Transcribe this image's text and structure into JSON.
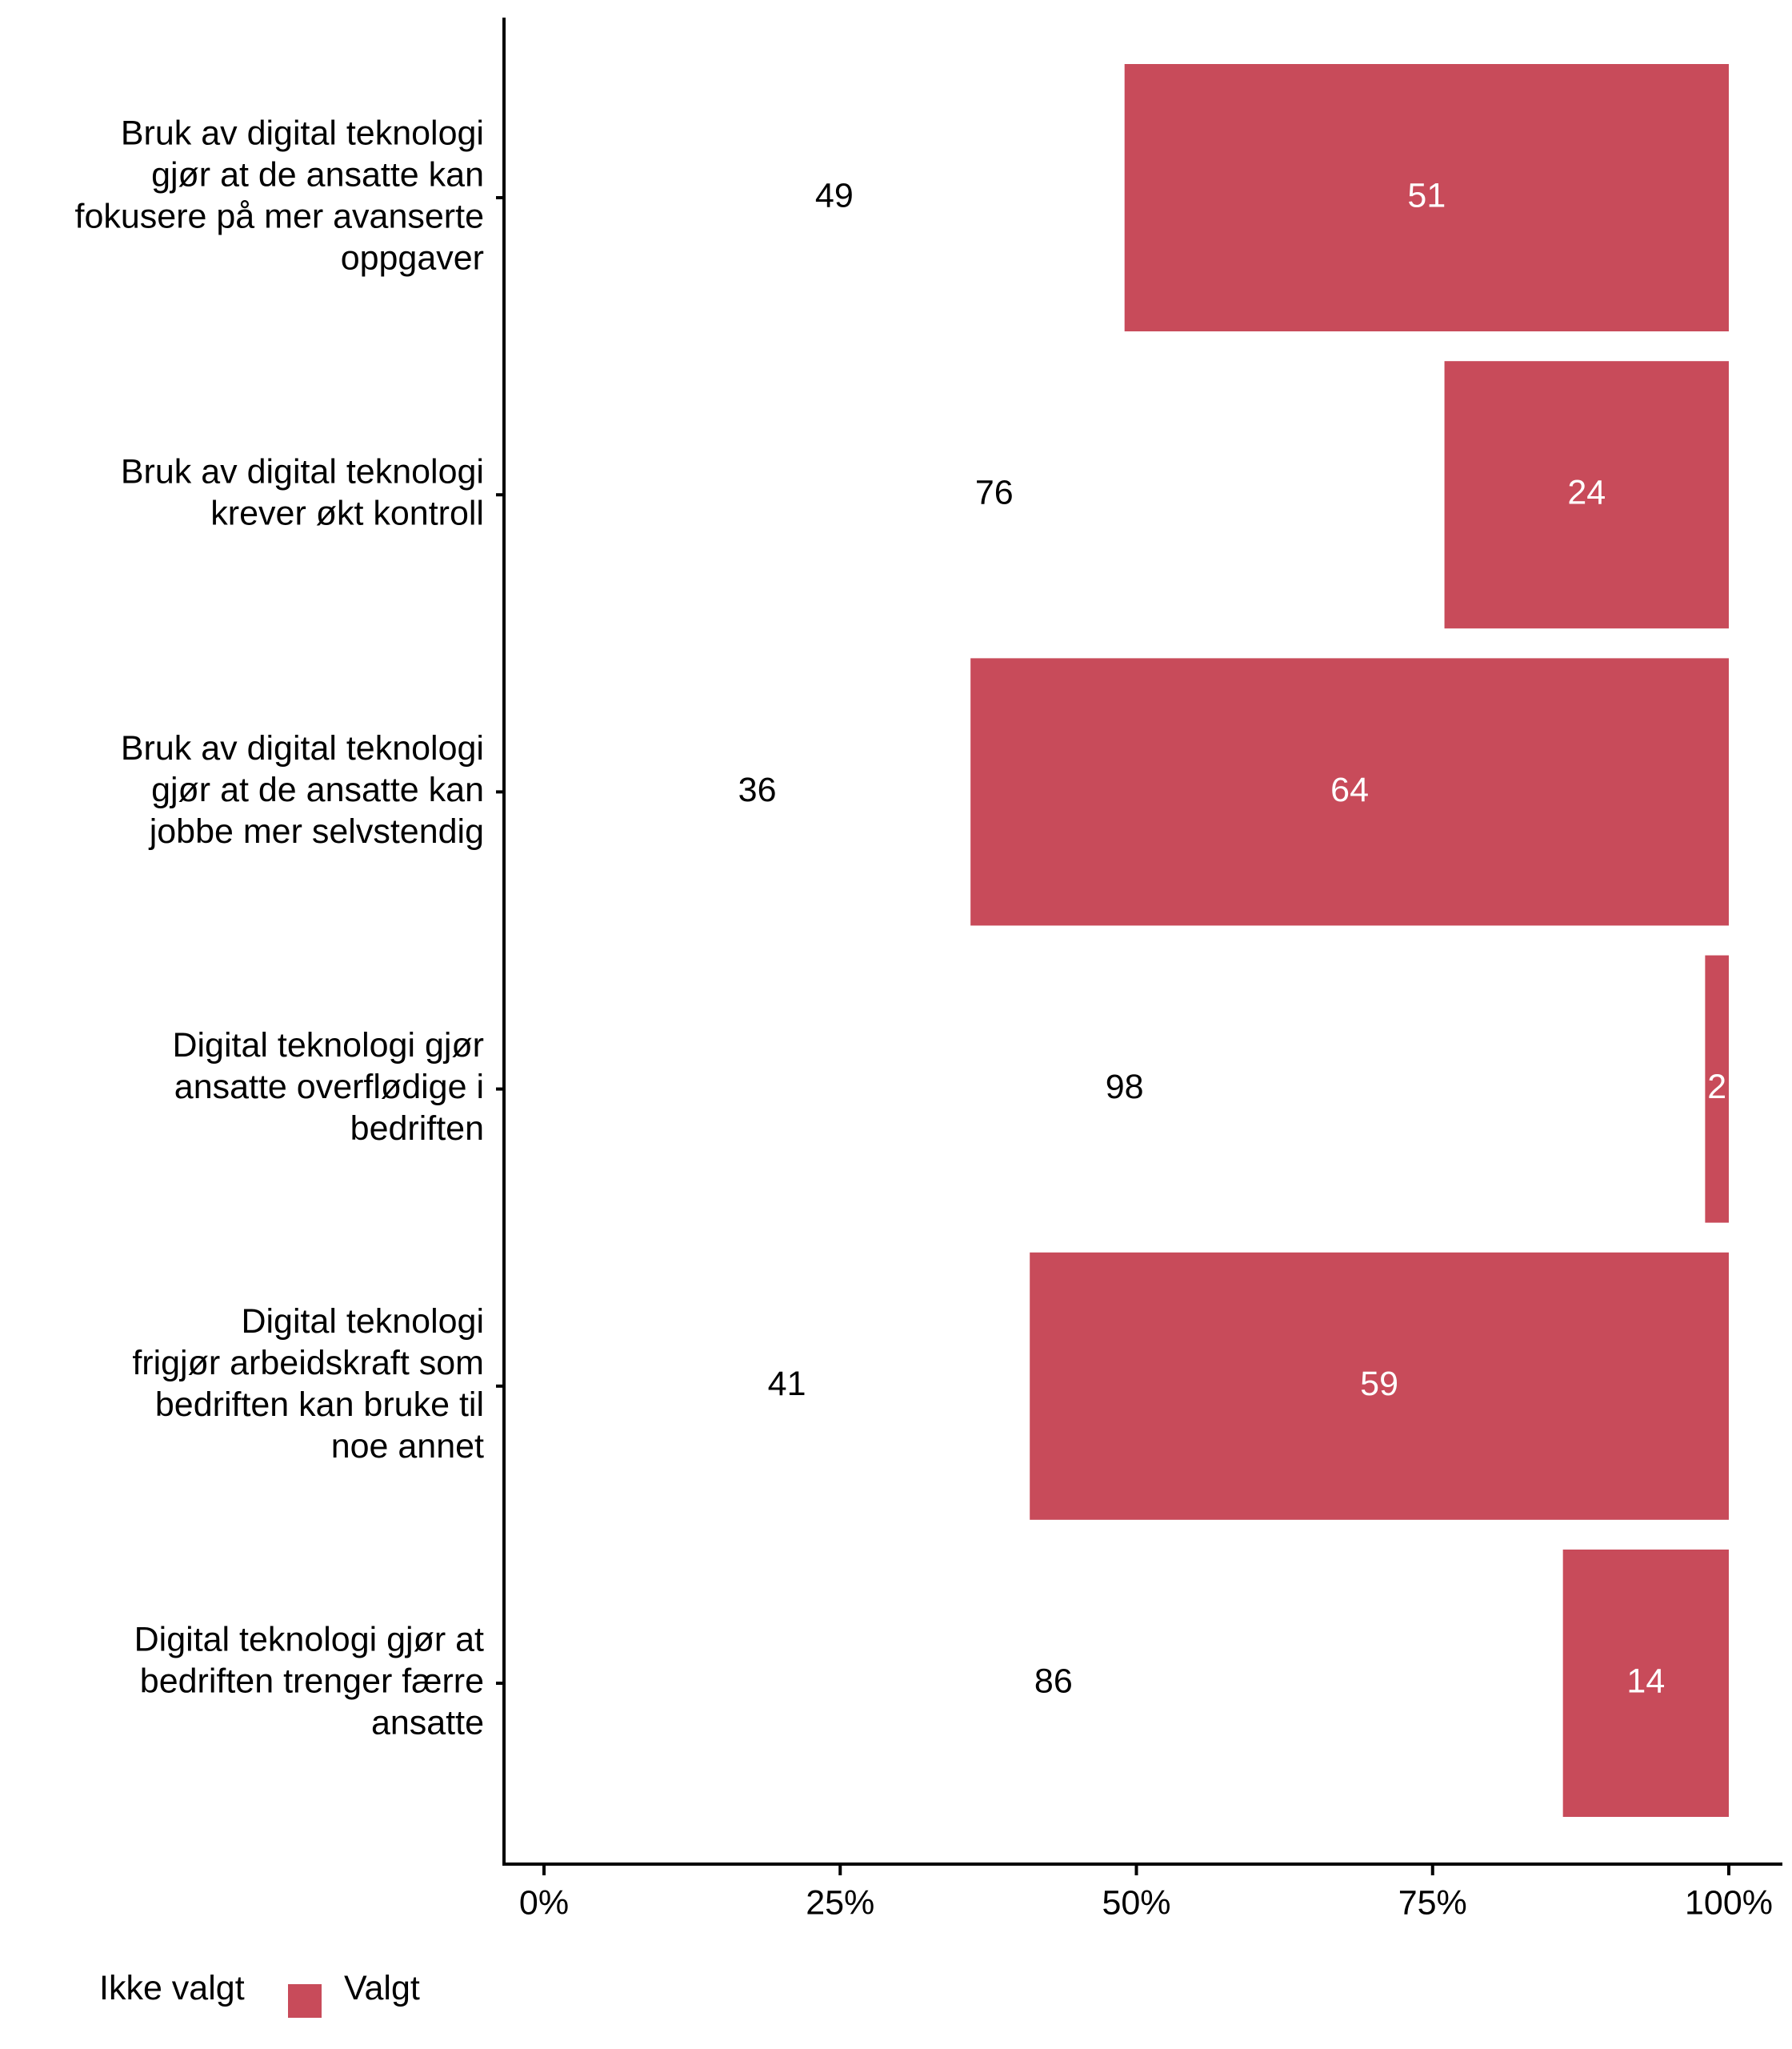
{
  "chart_data": {
    "type": "bar",
    "orientation": "horizontal",
    "stacked": true,
    "percent": true,
    "categories": [
      "Bruk av digital teknologi gjør at de ansatte kan fokusere på mer avanserte oppgaver",
      "Bruk av digital teknologi krever økt kontroll",
      "Bruk av digital teknologi gjør at de ansatte kan jobbe mer selvstendig",
      "Digital teknologi gjør ansatte overflødige i bedriften",
      "Digital teknologi frigjør arbeidskraft som bedriften kan bruke til noe annet",
      "Digital teknologi gjør at bedriften trenger færre ansatte"
    ],
    "category_lines": [
      [
        "Bruk av digital teknologi",
        "gjør at de ansatte kan",
        "fokusere på mer avanserte",
        "oppgaver"
      ],
      [
        "Bruk av digital teknologi",
        "krever økt kontroll"
      ],
      [
        "Bruk av digital teknologi",
        "gjør at de ansatte kan",
        "jobbe mer selvstendig"
      ],
      [
        "Digital teknologi gjør",
        "ansatte overflødige i",
        "bedriften"
      ],
      [
        "Digital teknologi",
        "frigjør arbeidskraft som",
        "bedriften kan bruke til",
        "noe annet"
      ],
      [
        "Digital teknologi gjør at",
        "bedriften trenger færre",
        "ansatte"
      ]
    ],
    "series": [
      {
        "name": "Ikke valgt",
        "color": "#ffffff",
        "values": [
          49,
          76,
          36,
          98,
          41,
          86
        ]
      },
      {
        "name": "Valgt",
        "color": "#c84b5a",
        "values": [
          51,
          24,
          64,
          2,
          59,
          14
        ]
      }
    ],
    "value_labels": [
      [
        "49",
        "51"
      ],
      [
        "76",
        "24"
      ],
      [
        "36",
        "64"
      ],
      [
        "98",
        "2"
      ],
      [
        "41",
        "59"
      ],
      [
        "86",
        "14"
      ]
    ],
    "xlim": [
      0,
      100
    ],
    "x_ticks": [
      "0%",
      "25%",
      "50%",
      "75%",
      "100%"
    ],
    "x_tick_values": [
      0,
      25,
      50,
      75,
      100
    ],
    "legend": {
      "position": "bottom-left",
      "entries": [
        "Ikke valgt",
        "Valgt"
      ]
    },
    "grid": false,
    "title": "",
    "xlabel": "",
    "ylabel": ""
  }
}
